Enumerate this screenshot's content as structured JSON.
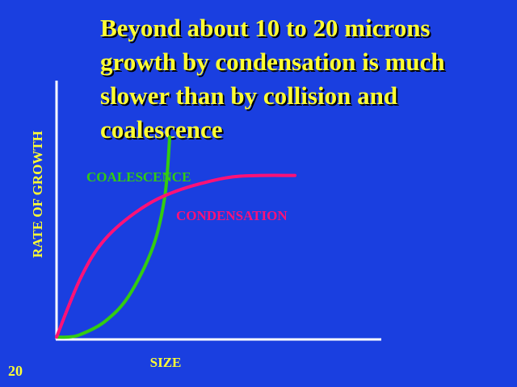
{
  "slide": {
    "title_lines": [
      "Beyond about 10 to 20 microns",
      "growth by condensation is much",
      "slower than by collision and",
      "coalescence"
    ],
    "number": "20"
  },
  "chart_data": {
    "type": "line",
    "xlabel": "SIZE",
    "ylabel": "RATE  OF GROWTH",
    "grid": false,
    "legend": "inline labels",
    "series": [
      {
        "name": "COALESCENCE",
        "color": "#33cc11",
        "x": [
          0,
          0.05,
          0.1,
          0.2,
          0.3,
          0.4,
          0.45,
          0.47
        ],
        "y": [
          0,
          0.0,
          0.01,
          0.06,
          0.16,
          0.35,
          0.55,
          0.78
        ]
      },
      {
        "name": "CONDENSATION",
        "color": "#ff1177",
        "x": [
          0,
          0.1,
          0.2,
          0.35,
          0.5,
          0.7,
          0.85,
          0.99
        ],
        "y": [
          0,
          0.23,
          0.38,
          0.5,
          0.57,
          0.62,
          0.63,
          0.63
        ]
      }
    ],
    "xlim": [
      0,
      1
    ],
    "ylim": [
      0,
      1
    ]
  }
}
